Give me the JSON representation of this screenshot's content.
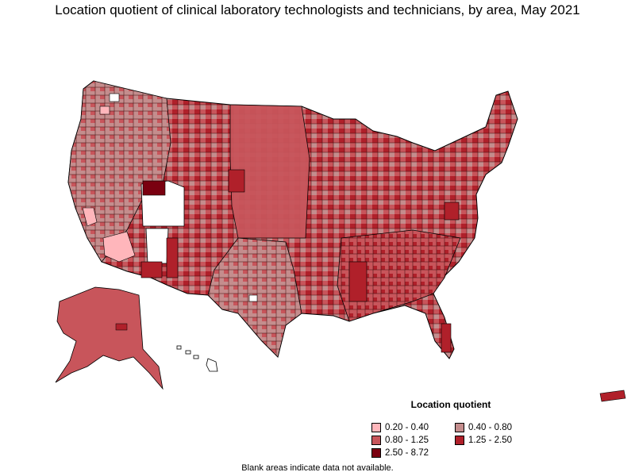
{
  "title": "Location quotient of clinical laboratory technologists and technicians, by area, May 2021",
  "legend": {
    "title": "Location quotient",
    "items": [
      {
        "label": "0.20 - 0.40",
        "color": "#ffb6bb"
      },
      {
        "label": "0.40 - 0.80",
        "color": "#c48d8d"
      },
      {
        "label": "0.80 - 1.25",
        "color": "#c8555b"
      },
      {
        "label": "1.25 - 2.50",
        "color": "#b0202a"
      },
      {
        "label": "2.50 - 8.72",
        "color": "#7a0010"
      }
    ]
  },
  "note": "Blank areas indicate data not available.",
  "colors": {
    "state_border": "#000000",
    "no_data": "#ffffff"
  }
}
